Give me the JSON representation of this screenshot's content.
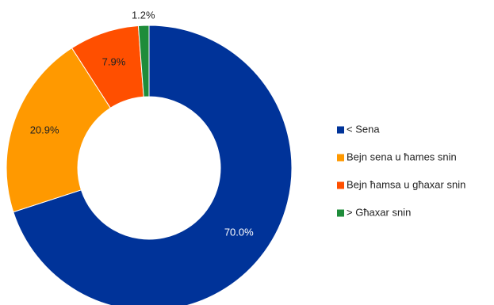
{
  "chart_data": {
    "type": "pie",
    "variant": "donut",
    "title": "",
    "slices": [
      {
        "label": "< Sena",
        "value": 70.0,
        "value_label": "70.0%",
        "color": "#003399",
        "label_color": "#ffffff"
      },
      {
        "label": "Bejn sena u ħames snin",
        "value": 20.9,
        "value_label": "20.9%",
        "color": "#FF9900",
        "label_color": "#222222"
      },
      {
        "label": "Bejn ħamsa u għaxar snin",
        "value": 7.9,
        "value_label": "7.9%",
        "color": "#FF4F00",
        "label_color": "#222222"
      },
      {
        "label": "> Għaxar snin",
        "value": 1.2,
        "value_label": "1.2%",
        "color": "#1E8C3A",
        "label_color": "#222222"
      }
    ],
    "legend_position": "right"
  }
}
